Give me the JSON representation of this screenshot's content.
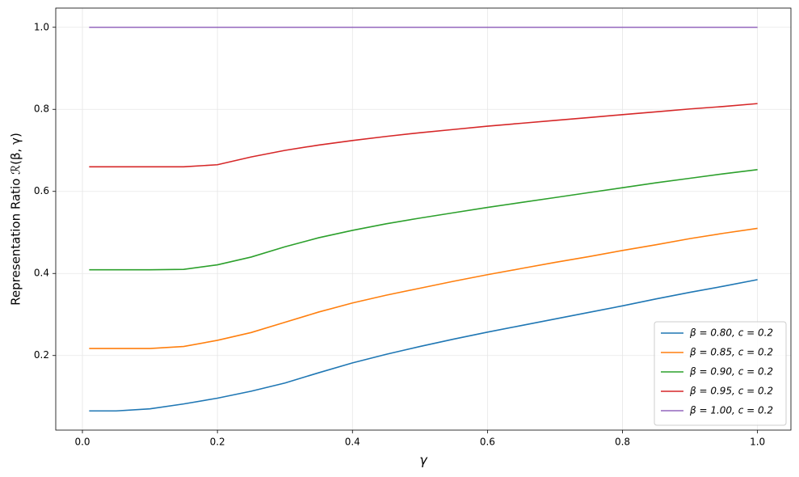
{
  "chart_data": {
    "type": "line",
    "xlabel": "γ",
    "ylabel": "Representation Ratio ℛ(β, γ)",
    "x": [
      0.01,
      0.05,
      0.1,
      0.15,
      0.2,
      0.25,
      0.3,
      0.35,
      0.4,
      0.45,
      0.5,
      0.55,
      0.6,
      0.65,
      0.7,
      0.75,
      0.8,
      0.85,
      0.9,
      0.95,
      1.0
    ],
    "series": [
      {
        "name": "β = 0.80, c = 0.2",
        "color": "#1f77b4",
        "values": [
          0.065,
          0.065,
          0.07,
          0.082,
          0.096,
          0.113,
          0.133,
          0.158,
          0.182,
          0.203,
          0.222,
          0.24,
          0.257,
          0.273,
          0.289,
          0.305,
          0.321,
          0.338,
          0.354,
          0.369,
          0.385
        ]
      },
      {
        "name": "β = 0.85, c = 0.2",
        "color": "#ff7f0e",
        "values": [
          0.217,
          0.217,
          0.217,
          0.222,
          0.237,
          0.256,
          0.281,
          0.306,
          0.328,
          0.347,
          0.364,
          0.381,
          0.397,
          0.412,
          0.427,
          0.441,
          0.456,
          0.47,
          0.485,
          0.498,
          0.51
        ]
      },
      {
        "name": "β = 0.90, c = 0.2",
        "color": "#2ca02c",
        "values": [
          0.409,
          0.409,
          0.409,
          0.41,
          0.421,
          0.44,
          0.465,
          0.487,
          0.505,
          0.521,
          0.535,
          0.548,
          0.561,
          0.573,
          0.585,
          0.597,
          0.609,
          0.621,
          0.632,
          0.643,
          0.653
        ]
      },
      {
        "name": "β = 0.95, c = 0.2",
        "color": "#d62728",
        "values": [
          0.66,
          0.66,
          0.66,
          0.66,
          0.665,
          0.684,
          0.7,
          0.713,
          0.724,
          0.734,
          0.743,
          0.751,
          0.759,
          0.766,
          0.773,
          0.78,
          0.787,
          0.794,
          0.801,
          0.807,
          0.814
        ]
      },
      {
        "name": "β = 1.00, c = 0.2",
        "color": "#9467bd",
        "values": [
          1,
          1,
          1,
          1,
          1,
          1,
          1,
          1,
          1,
          1,
          1,
          1,
          1,
          1,
          1,
          1,
          1,
          1,
          1,
          1,
          1
        ]
      }
    ],
    "xlim": [
      -0.0395,
      1.0495
    ],
    "ylim": [
      0.0182,
      1.0468
    ],
    "xticks": [
      {
        "value": 0,
        "label": "0.0"
      },
      0.2,
      0.4,
      0.6,
      0.8,
      {
        "value": 1,
        "label": "1.0"
      }
    ],
    "yticks": [
      0.2,
      0.4,
      0.6,
      0.8,
      {
        "value": 1,
        "label": "1.0"
      }
    ],
    "grid": true,
    "legend": "lower right"
  }
}
